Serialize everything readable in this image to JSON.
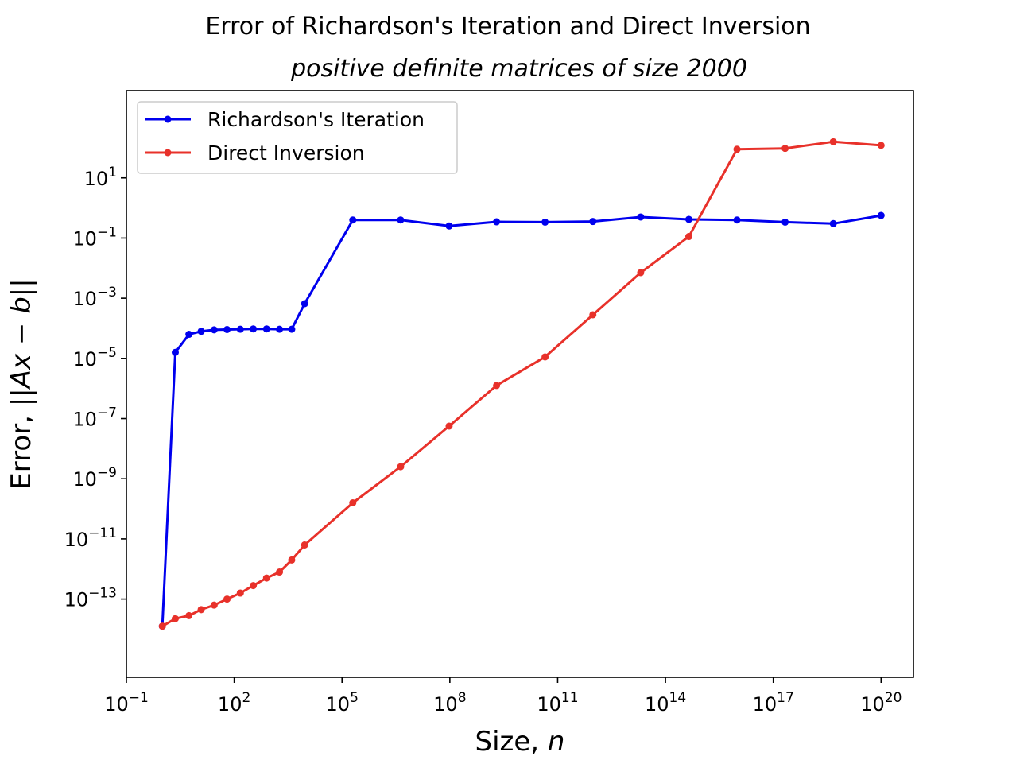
{
  "chart_data": {
    "type": "line",
    "title": "Error of Richardson's Iteration and Direct Inversion",
    "subtitle": "positive definite matrices of size 2000",
    "xlabel": {
      "text": "Size, ",
      "var": "n"
    },
    "ylabel": {
      "text": "Error, ",
      "expr": "||Ax − b||"
    },
    "xscale": "log",
    "yscale": "log",
    "xlim_log10": [
      -1,
      20.9
    ],
    "ylim_log10": [
      -15.6,
      3.9
    ],
    "xticks": [
      {
        "base": "10",
        "exp": "−1",
        "log10": -1
      },
      {
        "base": "10",
        "exp": "2",
        "log10": 2
      },
      {
        "base": "10",
        "exp": "5",
        "log10": 5
      },
      {
        "base": "10",
        "exp": "8",
        "log10": 8
      },
      {
        "base": "10",
        "exp": "11",
        "log10": 11
      },
      {
        "base": "10",
        "exp": "14",
        "log10": 14
      },
      {
        "base": "10",
        "exp": "17",
        "log10": 17
      },
      {
        "base": "10",
        "exp": "20",
        "log10": 20
      }
    ],
    "yticks": [
      {
        "base": "10",
        "exp": "1",
        "log10": 1
      },
      {
        "base": "10",
        "exp": "−1",
        "log10": -1
      },
      {
        "base": "10",
        "exp": "−3",
        "log10": -3
      },
      {
        "base": "10",
        "exp": "−5",
        "log10": -5
      },
      {
        "base": "10",
        "exp": "−7",
        "log10": -7
      },
      {
        "base": "10",
        "exp": "−9",
        "log10": -9
      },
      {
        "base": "10",
        "exp": "−11",
        "log10": -11
      },
      {
        "base": "10",
        "exp": "−13",
        "log10": -13
      }
    ],
    "legend_position": "upper-left",
    "grid": false,
    "series": [
      {
        "name": "Richardson's Iteration",
        "color": "#0000ee",
        "x_log10": [
          0,
          0.36,
          0.74,
          1.08,
          1.44,
          1.8,
          2.17,
          2.53,
          2.9,
          3.26,
          3.6,
          3.96,
          5.3,
          6.63,
          7.98,
          9.3,
          10.65,
          11.98,
          13.31,
          14.65,
          15.99,
          17.33,
          18.67,
          20
        ],
        "y_log10": [
          -13.9,
          -4.8,
          -4.2,
          -4.1,
          -4.05,
          -4.04,
          -4.03,
          -4.02,
          -4.02,
          -4.03,
          -4.03,
          -3.18,
          -0.4,
          -0.4,
          -0.6,
          -0.46,
          -0.47,
          -0.45,
          -0.3,
          -0.38,
          -0.4,
          -0.47,
          -0.52,
          -0.25
        ]
      },
      {
        "name": "Direct Inversion",
        "color": "#e8312a",
        "x_log10": [
          0,
          0.36,
          0.74,
          1.08,
          1.44,
          1.8,
          2.17,
          2.53,
          2.9,
          3.26,
          3.6,
          3.96,
          5.3,
          6.63,
          7.98,
          9.3,
          10.65,
          11.98,
          13.31,
          14.65,
          15.99,
          17.33,
          18.67,
          20
        ],
        "y_log10": [
          -13.9,
          -13.65,
          -13.55,
          -13.35,
          -13.2,
          -13.0,
          -12.8,
          -12.55,
          -12.3,
          -12.1,
          -11.7,
          -11.2,
          -9.8,
          -8.6,
          -7.25,
          -5.9,
          -4.95,
          -3.55,
          -2.15,
          -0.95,
          1.95,
          1.98,
          2.2,
          2.08
        ]
      }
    ]
  }
}
